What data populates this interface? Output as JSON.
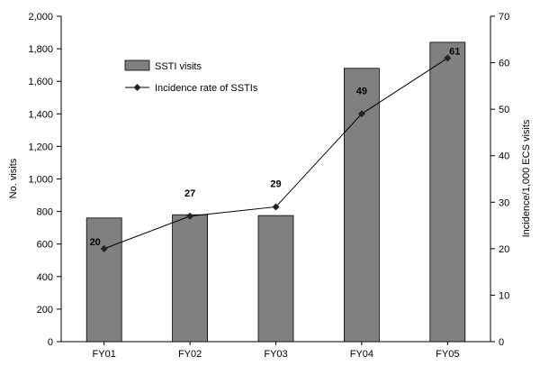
{
  "chart_data": {
    "type": "bar+line",
    "categories": [
      "FY01",
      "FY02",
      "FY03",
      "FY04",
      "FY05"
    ],
    "bars": {
      "name": "SSTI visits",
      "values": [
        760,
        780,
        775,
        1680,
        1840
      ],
      "color": "#808080",
      "axis": "left"
    },
    "line": {
      "name": "Incidence rate of SSTIs",
      "values": [
        20,
        27,
        29,
        49,
        61
      ],
      "data_labels": [
        "20",
        "27",
        "29",
        "49",
        "61"
      ],
      "color": "#000000",
      "axis": "right"
    },
    "ylabel_left": "No. visits",
    "ylabel_right": "Incidence/1,000 ECS visits",
    "ylim_left": [
      0,
      2000
    ],
    "ylim_right": [
      0,
      70
    ],
    "yticks_left": [
      "0",
      "200",
      "400",
      "600",
      "800",
      "1,000",
      "1,200",
      "1,400",
      "1,600",
      "1,800",
      "2,000"
    ],
    "yticks_right": [
      "0",
      "10",
      "20",
      "30",
      "40",
      "50",
      "60",
      "70"
    ],
    "legend_position": "top-left",
    "grid": false
  }
}
